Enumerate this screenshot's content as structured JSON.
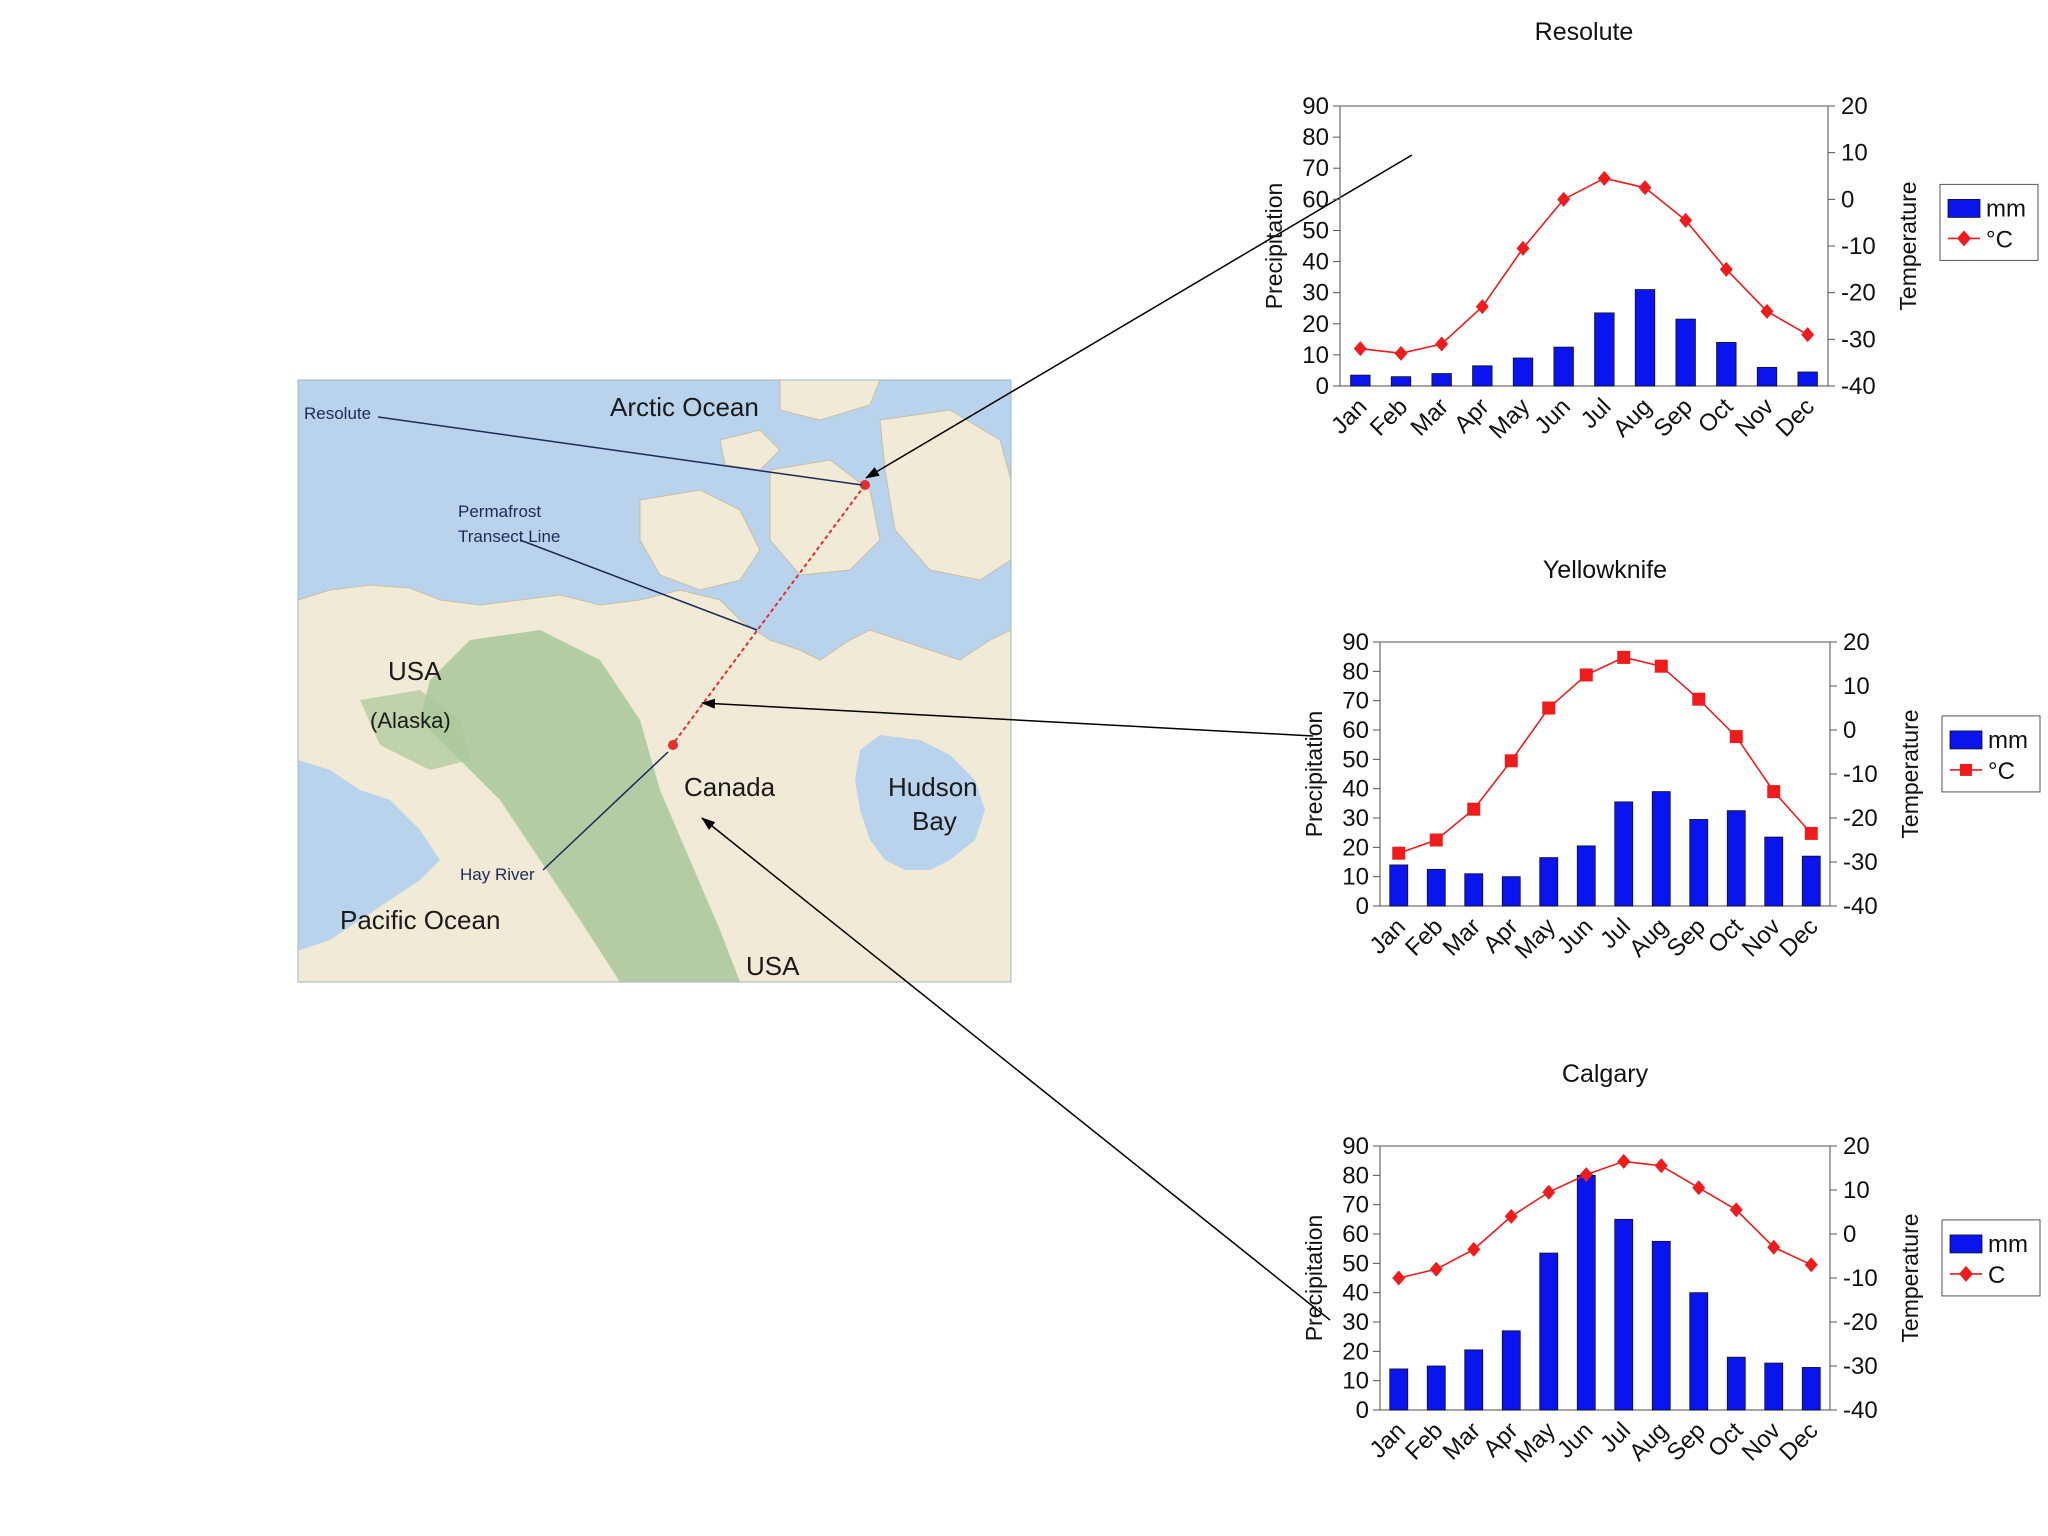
{
  "map": {
    "labels": {
      "arctic_ocean": "Arctic Ocean",
      "resolute": "Resolute",
      "permafrost_line_1": "Permafrost",
      "permafrost_line_2": "Transect Line",
      "usa_alaska_1": "USA",
      "usa_alaska_2": "(Alaska)",
      "canada": "Canada",
      "hudson_1": "Hudson",
      "hudson_2": "Bay",
      "hay_river": "Hay River",
      "pacific_ocean": "Pacific Ocean",
      "usa_south": "USA"
    },
    "colors": {
      "ocean": "#b9d3ec",
      "land": "#f1ead6",
      "mountains": "#a9c79a",
      "transect": "#e03030"
    }
  },
  "chart_data": [
    {
      "type": "bar+line",
      "title": "Resolute",
      "categories": [
        "Jan",
        "Feb",
        "Mar",
        "Apr",
        "May",
        "Jun",
        "Jul",
        "Aug",
        "Sep",
        "Oct",
        "Nov",
        "Dec"
      ],
      "series": [
        {
          "name": "mm",
          "type": "bar",
          "axis": "left",
          "values": [
            3.5,
            3,
            4,
            6.5,
            9,
            12.5,
            23.5,
            31,
            21.5,
            14,
            6,
            4.5
          ]
        },
        {
          "name": "°C",
          "type": "line",
          "axis": "right",
          "marker": "diamond",
          "values": [
            -32,
            -33,
            -31,
            -23,
            -10.5,
            0,
            4.5,
            2.5,
            -4.5,
            -15,
            -24,
            -29
          ]
        }
      ],
      "ylabel": "Precipitation",
      "y2label": "Temperature",
      "ylim": [
        0,
        90
      ],
      "y2lim": [
        -40,
        20
      ],
      "yticks": [
        "0",
        "10",
        "20",
        "30",
        "40",
        "50",
        "60",
        "70",
        "80",
        "90"
      ],
      "y2ticks": [
        "-40",
        "-30",
        "-20",
        "-10",
        "0",
        "10",
        "20"
      ],
      "legend": "right",
      "colors": {
        "bar": "#0a14ee",
        "line": "#ee1c1c"
      }
    },
    {
      "type": "bar+line",
      "title": "Yellowknife",
      "categories": [
        "Jan",
        "Feb",
        "Mar",
        "Apr",
        "May",
        "Jun",
        "Jul",
        "Aug",
        "Sep",
        "Oct",
        "Nov",
        "Dec"
      ],
      "series": [
        {
          "name": "mm",
          "type": "bar",
          "axis": "left",
          "values": [
            14,
            12.5,
            11,
            10,
            16.5,
            20.5,
            35.5,
            39,
            29.5,
            32.5,
            23.5,
            17
          ]
        },
        {
          "name": "°C",
          "type": "line",
          "axis": "right",
          "marker": "square",
          "values": [
            -28,
            -25,
            -18,
            -7,
            5,
            12.5,
            16.5,
            14.5,
            7,
            -1.5,
            -14,
            -23.5
          ]
        }
      ],
      "ylabel": "Precipitation",
      "y2label": "Temperature",
      "ylim": [
        0,
        90
      ],
      "y2lim": [
        -40,
        20
      ],
      "yticks": [
        "0",
        "10",
        "20",
        "30",
        "40",
        "50",
        "60",
        "70",
        "80",
        "90"
      ],
      "y2ticks": [
        "-40",
        "-30",
        "-20",
        "-10",
        "0",
        "10",
        "20"
      ],
      "legend": "right",
      "colors": {
        "bar": "#0a14ee",
        "line": "#ee1c1c"
      }
    },
    {
      "type": "bar+line",
      "title": "Calgary",
      "categories": [
        "Jan",
        "Feb",
        "Mar",
        "Apr",
        "May",
        "Jun",
        "Jul",
        "Aug",
        "Sep",
        "Oct",
        "Nov",
        "Dec"
      ],
      "series": [
        {
          "name": "mm",
          "type": "bar",
          "axis": "left",
          "values": [
            14,
            15,
            20.5,
            27,
            53.5,
            80,
            65,
            57.5,
            40,
            18,
            16,
            14.5
          ]
        },
        {
          "name": "C",
          "type": "line",
          "axis": "right",
          "marker": "diamond",
          "values": [
            -10,
            -8,
            -3.5,
            4,
            9.5,
            13.5,
            16.5,
            15.5,
            10.5,
            5.5,
            -3,
            -7
          ]
        }
      ],
      "ylabel": "Precipitation",
      "y2label": "Temperature",
      "ylim": [
        0,
        90
      ],
      "y2lim": [
        -40,
        20
      ],
      "yticks": [
        "0",
        "10",
        "20",
        "30",
        "40",
        "50",
        "60",
        "70",
        "80",
        "90"
      ],
      "y2ticks": [
        "-40",
        "-30",
        "-20",
        "-10",
        "0",
        "10",
        "20"
      ],
      "legend": "right",
      "colors": {
        "bar": "#0a14ee",
        "line": "#ee1c1c"
      }
    }
  ]
}
